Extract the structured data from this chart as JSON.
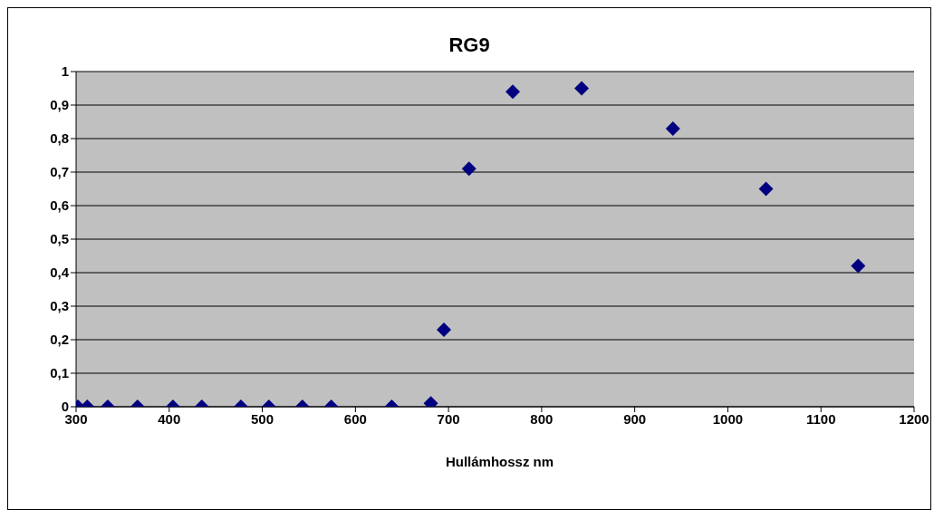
{
  "chart_data": {
    "type": "scatter",
    "title": "RG9",
    "xlabel": "Hullámhossz nm",
    "x": [
      302,
      312,
      334,
      366,
      404,
      435,
      477,
      507,
      543,
      574,
      639,
      681,
      695,
      722,
      769,
      843,
      941,
      1041,
      1140
    ],
    "series": [
      {
        "color": "#000080",
        "values": [
          0,
          0,
          0,
          0,
          0,
          0,
          0,
          0,
          0,
          0,
          0,
          0.01,
          0.23,
          0.71,
          0.94,
          0.95,
          0.83,
          0.65,
          0.42
        ]
      }
    ],
    "xlim": [
      300,
      1200
    ],
    "xticks": [
      300,
      400,
      500,
      600,
      700,
      800,
      900,
      1000,
      1100,
      1200
    ],
    "ylim": [
      0,
      1
    ],
    "yticks": [
      0,
      {
        "value": 0.1,
        "label": "0,1"
      },
      {
        "value": 0.2,
        "label": "0,2"
      },
      {
        "value": 0.3,
        "label": "0,3"
      },
      {
        "value": 0.4,
        "label": "0,4"
      },
      {
        "value": 0.5,
        "label": "0,5"
      },
      {
        "value": 0.6,
        "label": "0,6"
      },
      {
        "value": 0.7,
        "label": "0,7"
      },
      {
        "value": 0.8,
        "label": "0,8"
      },
      {
        "value": 0.9,
        "label": "0,9"
      },
      1
    ],
    "grid": "y",
    "marker": "diamond"
  }
}
